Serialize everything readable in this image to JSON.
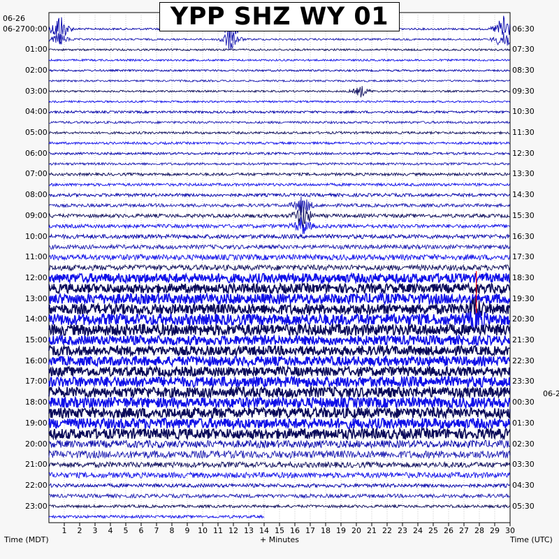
{
  "title": "YPP SHZ WY 01",
  "left_date_top": "06-26",
  "left_date_second": "06-27",
  "right_date_bottom": "06-2",
  "left_axis_label": "Time (MDT)",
  "center_axis_label": "+ Minutes",
  "right_axis_label": "Time (UTC)",
  "colors": {
    "trace_a": "#0000a8",
    "trace_b": "#1a1ab0",
    "trace_dark": "#0a0a5a",
    "trace_bright": "#1010e8",
    "clip": "#ff0000",
    "grid": "#000000",
    "background": "#ffffff"
  },
  "chart_data": {
    "type": "helicorder",
    "station": "YPP SHZ WY 01",
    "minutes_per_line": 30,
    "x_ticks": [
      "1",
      "2",
      "3",
      "4",
      "5",
      "6",
      "7",
      "8",
      "9",
      "10",
      "11",
      "12",
      "13",
      "14",
      "15",
      "16",
      "17",
      "18",
      "19",
      "20",
      "21",
      "22",
      "23",
      "24",
      "25",
      "26",
      "27",
      "28",
      "29",
      "30"
    ],
    "left_hour_labels": [
      "00:00",
      "01:00",
      "02:00",
      "03:00",
      "04:00",
      "05:00",
      "06:00",
      "07:00",
      "08:00",
      "09:00",
      "10:00",
      "11:00",
      "12:00",
      "13:00",
      "14:00",
      "15:00",
      "16:00",
      "17:00",
      "18:00",
      "19:00",
      "20:00",
      "21:00",
      "22:00",
      "23:00"
    ],
    "right_hour_labels": [
      "06:30",
      "07:30",
      "08:30",
      "09:30",
      "10:30",
      "11:30",
      "12:30",
      "13:30",
      "14:30",
      "15:30",
      "16:30",
      "17:30",
      "18:30",
      "19:30",
      "20:30",
      "21:30",
      "22:30",
      "23:30",
      "00:30",
      "01:30",
      "02:30",
      "03:30",
      "04:30",
      "05:30"
    ],
    "traces": 48,
    "last_trace_end_minute": 14,
    "noise_amplitude_by_hour": [
      0.2,
      0.2,
      0.2,
      0.2,
      0.25,
      0.25,
      0.25,
      0.3,
      0.35,
      0.4,
      0.45,
      0.6,
      1.0,
      1.1,
      1.2,
      1.0,
      1.0,
      1.1,
      1.1,
      1.1,
      0.8,
      0.6,
      0.4,
      0.3
    ],
    "events": [
      {
        "trace": 0,
        "minute": 0.7,
        "amplitude": 4.0
      },
      {
        "trace": 0,
        "minute": 11.8,
        "amplitude": 3.0
      },
      {
        "trace": 0,
        "minute": 29.6,
        "amplitude": 4.0
      },
      {
        "trace": 1,
        "minute": 0.7,
        "amplitude": 1.5
      },
      {
        "trace": 1,
        "minute": 11.8,
        "amplitude": 3.0
      },
      {
        "trace": 1,
        "minute": 29.6,
        "amplitude": 3.0
      },
      {
        "trace": 6,
        "minute": 20.3,
        "amplitude": 1.2
      },
      {
        "trace": 17,
        "minute": 16.5,
        "amplitude": 2.5
      },
      {
        "trace": 18,
        "minute": 16.5,
        "amplitude": 3.0
      },
      {
        "trace": 19,
        "minute": 16.5,
        "amplitude": 2.0
      },
      {
        "trace": 27,
        "minute": 27.8,
        "amplitude": 2.0
      },
      {
        "trace": 28,
        "minute": 27.8,
        "amplitude": 2.0
      }
    ]
  }
}
